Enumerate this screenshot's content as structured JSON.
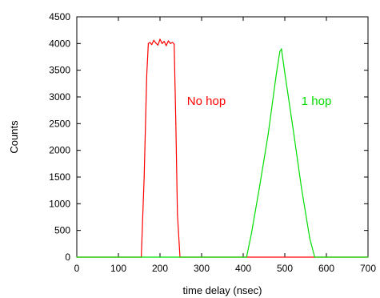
{
  "chart_data": {
    "type": "line",
    "title": "",
    "xlabel": "time delay (nsec)",
    "ylabel": "Counts",
    "xlim": [
      0,
      700
    ],
    "ylim": [
      0,
      4500
    ],
    "xticks": [
      0,
      100,
      200,
      300,
      400,
      500,
      600,
      700
    ],
    "yticks": [
      0,
      500,
      1000,
      1500,
      2000,
      2500,
      3000,
      3500,
      4000,
      4500
    ],
    "grid": false,
    "legend": "none",
    "series": [
      {
        "name": "No hop",
        "color": "#ff0000",
        "x": [
          0,
          155,
          162,
          168,
          172,
          176,
          180,
          185,
          190,
          195,
          200,
          205,
          210,
          215,
          220,
          225,
          230,
          234,
          238,
          242,
          248,
          255,
          700
        ],
        "y": [
          0,
          0,
          1500,
          3400,
          4000,
          4020,
          3980,
          4060,
          4010,
          3970,
          4080,
          4000,
          4040,
          3960,
          4050,
          4000,
          4020,
          3990,
          2500,
          800,
          0,
          0,
          0
        ]
      },
      {
        "name": "1 hop",
        "color": "#00dd00",
        "x": [
          0,
          408,
          420,
          440,
          460,
          480,
          488,
          492,
          500,
          520,
          540,
          560,
          572,
          700
        ],
        "y": [
          0,
          0,
          450,
          1350,
          2300,
          3450,
          3850,
          3900,
          3450,
          2400,
          1300,
          350,
          0,
          0
        ]
      }
    ],
    "annotations": [
      {
        "text": "No hop",
        "x": 265,
        "y": 2850,
        "color": "#ff0000"
      },
      {
        "text": "1 hop",
        "x": 540,
        "y": 2850,
        "color": "#00dd00"
      }
    ]
  }
}
